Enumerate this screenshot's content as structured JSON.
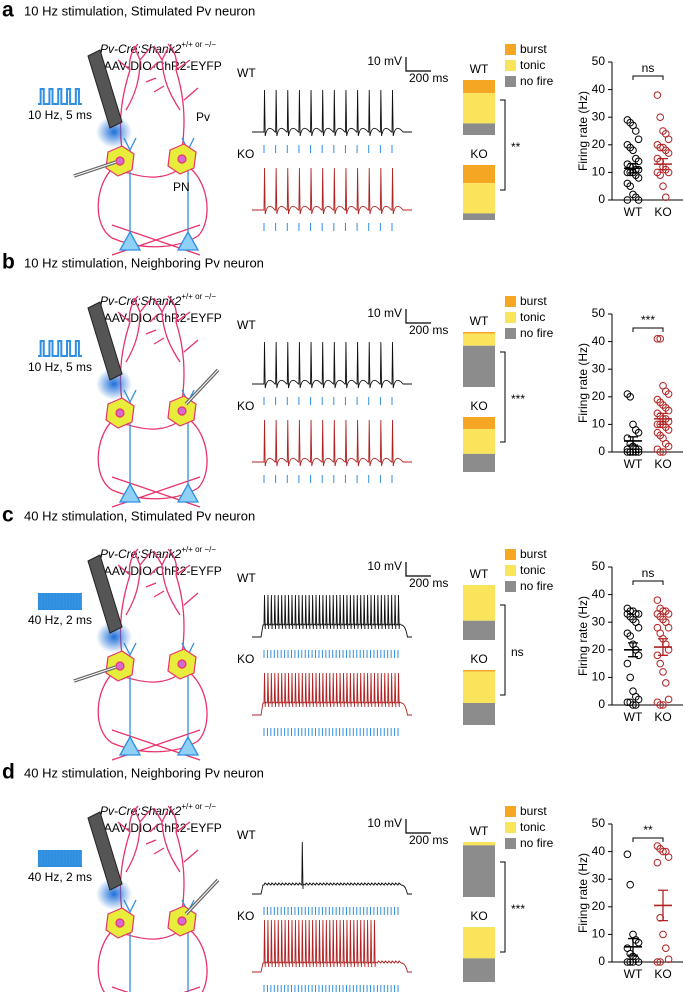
{
  "panels": [
    {
      "label": "a",
      "title": "10 Hz stimulation, Stimulated Pv neuron",
      "genotype": "Pv-Cre;Shank2",
      "genotype_sup": "+/+ or −/−",
      "virus": "+ AAV-DIO-ChR2-EYFP",
      "stimulus": "10 Hz, 5 ms",
      "cell_labels": [
        "Pv",
        "PN"
      ],
      "trace_labels": [
        "WT",
        "KO"
      ],
      "scale": {
        "voltage": "10 mV",
        "time": "200 ms"
      },
      "chart_data": [
        {
          "type": "stacked_bar",
          "categories": [
            "WT",
            "KO"
          ],
          "series": [
            {
              "name": "burst",
              "color": "#f5a623",
              "values": [
                24,
                33
              ]
            },
            {
              "name": "tonic",
              "color": "#f9e45c",
              "values": [
                55,
                55
              ]
            },
            {
              "name": "no fire",
              "color": "#8c8c8c",
              "values": [
                21,
                12
              ]
            }
          ],
          "significance": "**"
        },
        {
          "type": "scatter",
          "y_label": "Firing rate (Hz)",
          "categories": [
            "WT",
            "KO"
          ],
          "ylim": [
            0,
            50
          ],
          "yticks": [
            0,
            10,
            20,
            30,
            40,
            50
          ],
          "significance": "ns",
          "series": [
            {
              "color": "#000000",
              "values": [
                29,
                28,
                27,
                25,
                22,
                20,
                19,
                18,
                15,
                14,
                13,
                12,
                12,
                11,
                11,
                10,
                10,
                10,
                9,
                8,
                6,
                5,
                2,
                1,
                0,
                0
              ],
              "mean": 11.5,
              "sem": 1.7
            },
            {
              "color": "#b22222",
              "values": [
                38,
                30,
                25,
                24,
                22,
                20,
                19,
                19,
                18,
                17,
                15,
                14,
                12,
                11,
                10,
                10,
                9,
                5,
                1
              ],
              "mean": 13,
              "sem": 2
            }
          ]
        }
      ]
    },
    {
      "label": "b",
      "title": "10 Hz stimulation, Neighboring Pv neuron",
      "genotype": "Pv-Cre;Shank2",
      "genotype_sup": "+/+ or −/−",
      "virus": "+ AAV-DIO-ChR2-EYFP",
      "stimulus": "10 Hz, 5 ms",
      "trace_labels": [
        "WT",
        "KO"
      ],
      "scale": {
        "voltage": "10 mV",
        "time": "200 ms"
      },
      "chart_data": [
        {
          "type": "stacked_bar",
          "categories": [
            "WT",
            "KO"
          ],
          "series": [
            {
              "name": "burst",
              "color": "#f5a623",
              "values": [
                3,
                22
              ]
            },
            {
              "name": "tonic",
              "color": "#f9e45c",
              "values": [
                22,
                45
              ]
            },
            {
              "name": "no fire",
              "color": "#8c8c8c",
              "values": [
                75,
                33
              ]
            }
          ],
          "significance": "***"
        },
        {
          "type": "scatter",
          "y_label": "Firing rate (Hz)",
          "categories": [
            "WT",
            "KO"
          ],
          "ylim": [
            0,
            50
          ],
          "yticks": [
            0,
            10,
            20,
            30,
            40,
            50
          ],
          "significance": "***",
          "series": [
            {
              "color": "#000000",
              "values": [
                21,
                20,
                10,
                8,
                7,
                5,
                3,
                2,
                1,
                1,
                1,
                0,
                0,
                0,
                0,
                0,
                0
              ],
              "mean": 4,
              "sem": 1.5
            },
            {
              "color": "#b22222",
              "values": [
                41,
                41,
                24,
                22,
                21,
                19,
                18,
                17,
                16,
                15,
                14,
                13,
                12,
                12,
                11,
                10,
                10,
                10,
                9,
                8,
                7,
                6,
                5,
                3,
                2,
                1,
                0,
                0
              ],
              "mean": 12,
              "sem": 2
            }
          ]
        }
      ]
    },
    {
      "label": "c",
      "title": "40 Hz stimulation, Stimulated Pv neuron",
      "genotype": "Pv-Cre;Shank2",
      "genotype_sup": "+/+ or −/−",
      "virus": "+ AAV-DIO-ChR2-EYFP",
      "stimulus": "40 Hz, 2 ms",
      "trace_labels": [
        "WT",
        "KO"
      ],
      "scale": {
        "voltage": "10 mV",
        "time": "200 ms"
      },
      "chart_data": [
        {
          "type": "stacked_bar",
          "categories": [
            "WT",
            "KO"
          ],
          "series": [
            {
              "name": "burst",
              "color": "#f5a623",
              "values": [
                0,
                3
              ]
            },
            {
              "name": "tonic",
              "color": "#f9e45c",
              "values": [
                65,
                57
              ]
            },
            {
              "name": "no fire",
              "color": "#8c8c8c",
              "values": [
                35,
                40
              ]
            }
          ],
          "significance": "ns"
        },
        {
          "type": "scatter",
          "y_label": "Firing rate (Hz)",
          "categories": [
            "WT",
            "KO"
          ],
          "ylim": [
            0,
            50
          ],
          "yticks": [
            0,
            10,
            20,
            30,
            40,
            50
          ],
          "significance": "ns",
          "series": [
            {
              "color": "#000000",
              "values": [
                35,
                34,
                34,
                33,
                33,
                33,
                32,
                31,
                30,
                28,
                26,
                25,
                22,
                20,
                18,
                15,
                10,
                5,
                3,
                2,
                1,
                1,
                0,
                0
              ],
              "mean": 20,
              "sem": 2.5
            },
            {
              "color": "#b22222",
              "values": [
                38,
                35,
                34,
                34,
                33,
                33,
                32,
                31,
                30,
                28,
                28,
                26,
                24,
                22,
                20,
                18,
                15,
                12,
                8,
                2,
                1,
                0,
                0
              ],
              "mean": 21,
              "sem": 3
            }
          ]
        }
      ]
    },
    {
      "label": "d",
      "title": "40 Hz stimulation, Neighboring Pv neuron",
      "genotype": "Pv-Cre;Shank2",
      "genotype_sup": "+/+ or −/−",
      "virus": "+ AAV-DIO-ChR2-EYFP",
      "stimulus": "40 Hz, 2 ms",
      "trace_labels": [
        "WT",
        "KO"
      ],
      "scale": {
        "voltage": "10 mV",
        "time": "200 ms"
      },
      "chart_data": [
        {
          "type": "stacked_bar",
          "categories": [
            "WT",
            "KO"
          ],
          "series": [
            {
              "name": "burst",
              "color": "#f5a623",
              "values": [
                0,
                0
              ]
            },
            {
              "name": "tonic",
              "color": "#f9e45c",
              "values": [
                6,
                57
              ]
            },
            {
              "name": "no fire",
              "color": "#8c8c8c",
              "values": [
                94,
                43
              ]
            }
          ],
          "significance": "***"
        },
        {
          "type": "scatter",
          "y_label": "Firing rate (Hz)",
          "categories": [
            "WT",
            "KO"
          ],
          "ylim": [
            0,
            50
          ],
          "yticks": [
            0,
            10,
            20,
            30,
            40,
            50
          ],
          "significance": "**",
          "series": [
            {
              "color": "#000000",
              "values": [
                39,
                28,
                10,
                8,
                7,
                5,
                3,
                2,
                1,
                0,
                0,
                0,
                0
              ],
              "mean": 5.5,
              "sem": 3
            },
            {
              "color": "#b22222",
              "values": [
                42,
                41,
                40,
                40,
                38,
                36,
                16,
                10,
                5,
                1,
                0,
                0
              ],
              "mean": 20.5,
              "sem": 5.5
            }
          ]
        }
      ]
    }
  ]
}
